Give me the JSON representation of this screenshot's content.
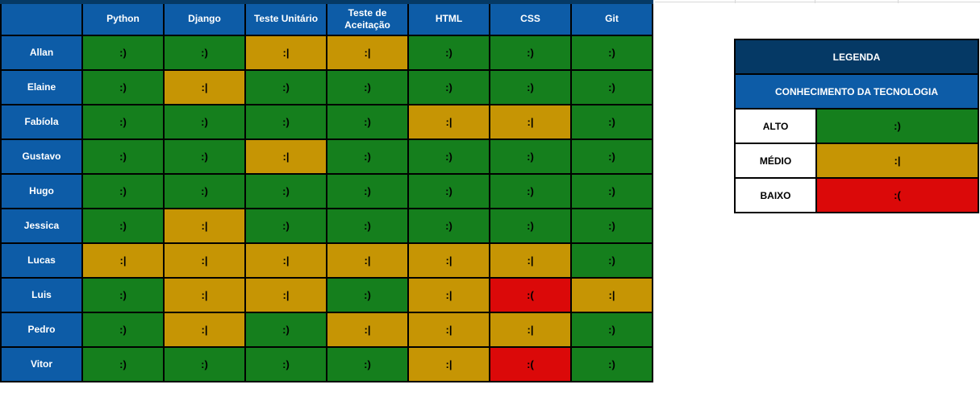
{
  "chart_data": {
    "type": "heatmap",
    "columns": [
      "Python",
      "Django",
      "Teste Unitário",
      "Teste de Aceitação",
      "HTML",
      "CSS",
      "Git"
    ],
    "rows": [
      "Allan",
      "Elaine",
      "Fabíola",
      "Gustavo",
      "Hugo",
      "Jessica",
      "Lucas",
      "Luis",
      "Pedro",
      "Vitor"
    ],
    "values": [
      [
        "alto",
        "alto",
        "medio",
        "medio",
        "alto",
        "alto",
        "alto"
      ],
      [
        "alto",
        "medio",
        "alto",
        "alto",
        "alto",
        "alto",
        "alto"
      ],
      [
        "alto",
        "alto",
        "alto",
        "alto",
        "medio",
        "medio",
        "alto"
      ],
      [
        "alto",
        "alto",
        "medio",
        "alto",
        "alto",
        "alto",
        "alto"
      ],
      [
        "alto",
        "alto",
        "alto",
        "alto",
        "alto",
        "alto",
        "alto"
      ],
      [
        "alto",
        "medio",
        "alto",
        "alto",
        "alto",
        "alto",
        "alto"
      ],
      [
        "medio",
        "medio",
        "medio",
        "medio",
        "medio",
        "medio",
        "alto"
      ],
      [
        "alto",
        "medio",
        "medio",
        "alto",
        "medio",
        "baixo",
        "medio"
      ],
      [
        "alto",
        "medio",
        "alto",
        "medio",
        "medio",
        "medio",
        "alto"
      ],
      [
        "alto",
        "alto",
        "alto",
        "alto",
        "medio",
        "baixo",
        "alto"
      ]
    ],
    "value_labels": {
      "alto": ":)",
      "medio": ":|",
      "baixo": ":("
    },
    "corner_label": "",
    "legend": {
      "title": "LEGENDA",
      "subtitle": "CONHECIMENTO DA TECNOLOGIA",
      "entries": [
        {
          "label": "ALTO",
          "level": "alto",
          "face": ":)"
        },
        {
          "label": "MÉDIO",
          "level": "medio",
          "face": ":|"
        },
        {
          "label": "BAIXO",
          "level": "baixo",
          "face": ":("
        }
      ],
      "position": "right"
    },
    "colors": {
      "header_blue": "#0d5ca7",
      "title_navy": "#053965",
      "alto_green": "#157f1d",
      "medio_gold": "#c69504",
      "baixo_red": "#db0909",
      "cell_border": "#000000",
      "gridline_gray": "#d8d8d8"
    }
  }
}
